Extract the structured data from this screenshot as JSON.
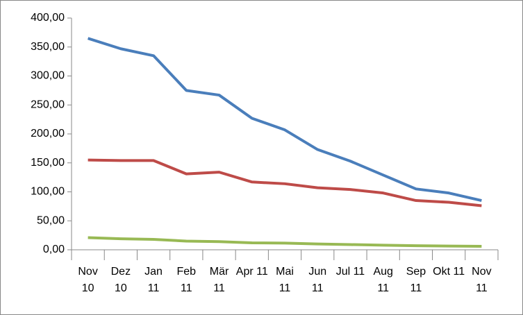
{
  "chart_data": {
    "type": "line",
    "categories": [
      "Nov 10",
      "Dez 10",
      "Jan 11",
      "Feb 11",
      "Mär 11",
      "Apr 11",
      "Mai 11",
      "Jun 11",
      "Jul 11",
      "Aug 11",
      "Sep 11",
      "Okt 11",
      "Nov 11"
    ],
    "series": [
      {
        "color": "#4a7ebb",
        "values": [
          365,
          347,
          335,
          275,
          267,
          227,
          207,
          173,
          153,
          129,
          105,
          98,
          85
        ]
      },
      {
        "color": "#be4b48",
        "values": [
          155,
          154,
          154,
          131,
          134,
          117,
          114,
          107,
          104,
          98,
          85,
          82,
          76
        ]
      },
      {
        "color": "#98b954",
        "values": [
          21,
          19,
          18,
          15,
          14,
          12,
          11.5,
          10,
          9,
          8,
          7,
          6.5,
          6
        ]
      }
    ],
    "ylim": [
      0,
      400
    ],
    "yticks": [
      {
        "value": 0,
        "label": "0,00"
      },
      {
        "value": 50,
        "label": "50,00"
      },
      {
        "value": 100,
        "label": "100,00"
      },
      {
        "value": 150,
        "label": "150,00"
      },
      {
        "value": 200,
        "label": "200,00"
      },
      {
        "value": 250,
        "label": "250,00"
      },
      {
        "value": 300,
        "label": "300,00"
      },
      {
        "value": 350,
        "label": "350,00"
      },
      {
        "value": 400,
        "label": "400,00"
      }
    ],
    "grid": false
  }
}
